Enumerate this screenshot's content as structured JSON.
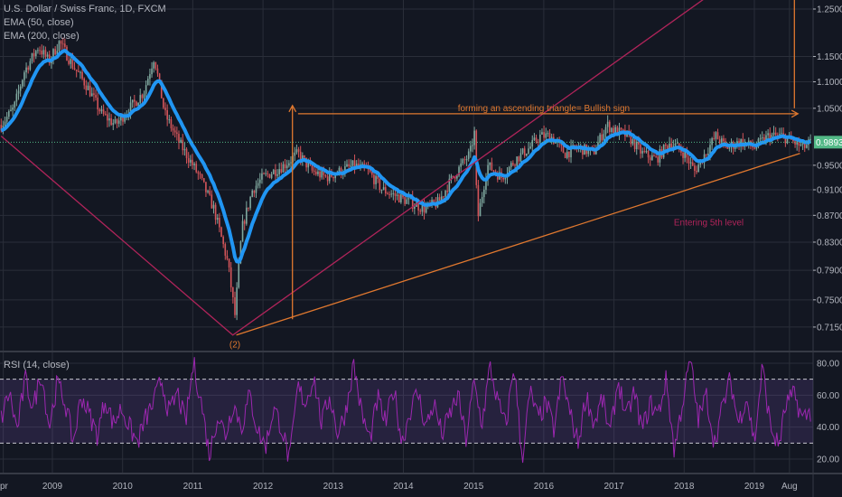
{
  "header": {
    "symbol_title": "U.S. Dollar / Swiss Franc, 1D, FXCM",
    "indicators": [
      "EMA (50, close)",
      "EMA (200, close)"
    ]
  },
  "rsi_pane": {
    "title": "RSI (14, close)"
  },
  "colors": {
    "background": "#131722",
    "grid": "#2a2e39",
    "text": "#b2b5be",
    "ema": "#2196f3",
    "candle_up": "#7fa89f",
    "candle_down": "#d4555a",
    "rsi_line": "#9c27b0",
    "rsi_band": "#7e57c2",
    "trend_orange": "#e0782f",
    "trend_magenta": "#b0245a",
    "last_price_bg": "#53b987"
  },
  "chart_data": [
    {
      "type": "candlestick",
      "title": "U.S. Dollar / Swiss Franc, 1D, FXCM",
      "scale": "log",
      "ylim": [
        0.69,
        1.27
      ],
      "y_ticks": [
        "1.25000",
        "1.15000",
        "1.10000",
        "1.05000",
        "0.95000",
        "0.91000",
        "0.87000",
        "0.83000",
        "0.79000",
        "0.75000",
        "0.71500"
      ],
      "last_price": "0.98934",
      "x_ticks": [
        "pr",
        "2009",
        "2010",
        "2011",
        "2012",
        "2013",
        "2014",
        "2015",
        "2016",
        "2017",
        "2018",
        "2019",
        "Aug"
      ],
      "grid": true,
      "price_path": {
        "dates": [
          2008.27,
          2008.45,
          2008.6,
          2008.8,
          2008.95,
          2009.1,
          2009.3,
          2009.5,
          2009.7,
          2009.9,
          2010.1,
          2010.3,
          2010.45,
          2010.6,
          2010.8,
          2010.95,
          2011.1,
          2011.3,
          2011.5,
          2011.6,
          2011.7,
          2011.85,
          2012.0,
          2012.3,
          2012.5,
          2012.7,
          2012.9,
          2013.1,
          2013.3,
          2013.5,
          2013.7,
          2013.9,
          2014.1,
          2014.3,
          2014.5,
          2014.7,
          2014.95,
          2015.02,
          2015.05,
          2015.2,
          2015.4,
          2015.6,
          2015.8,
          2015.95,
          2016.1,
          2016.3,
          2016.5,
          2016.7,
          2016.9,
          2017.0,
          2017.2,
          2017.4,
          2017.6,
          2017.8,
          2018.0,
          2018.15,
          2018.3,
          2018.45,
          2018.6,
          2018.8,
          2019.0,
          2019.2,
          2019.4,
          2019.55,
          2019.7,
          2019.8
        ],
        "close": [
          1.02,
          1.05,
          1.12,
          1.17,
          1.14,
          1.18,
          1.13,
          1.09,
          1.04,
          1.02,
          1.05,
          1.08,
          1.15,
          1.04,
          0.99,
          0.96,
          0.93,
          0.88,
          0.8,
          0.73,
          0.85,
          0.91,
          0.93,
          0.95,
          0.97,
          0.94,
          0.93,
          0.94,
          0.95,
          0.94,
          0.91,
          0.9,
          0.89,
          0.88,
          0.89,
          0.93,
          0.97,
          1.01,
          0.86,
          0.95,
          0.93,
          0.96,
          0.98,
          1.0,
          1.0,
          0.97,
          0.98,
          0.97,
          1.02,
          1.01,
          1.0,
          0.97,
          0.96,
          0.99,
          0.97,
          0.94,
          0.97,
          1.0,
          0.98,
          0.99,
          0.98,
          1.0,
          1.0,
          0.99,
          0.98,
          0.989
        ]
      },
      "series": [
        {
          "name": "EMA (50, close)"
        }
      ],
      "drawings": [
        {
          "kind": "line",
          "color": "magenta",
          "points": [
            [
              2008.27,
              1.0
            ],
            [
              2011.57,
              0.705
            ],
            [
              2018.35,
              1.28
            ]
          ]
        },
        {
          "kind": "line",
          "color": "orange",
          "points": [
            [
              2011.62,
              0.705
            ],
            [
              2019.65,
              0.97
            ]
          ]
        },
        {
          "kind": "arrow",
          "color": "orange",
          "points": [
            [
              2012.42,
              0.725
            ],
            [
              2012.42,
              1.055
            ]
          ]
        },
        {
          "kind": "arrow",
          "color": "orange",
          "points": [
            [
              2012.5,
              1.04
            ],
            [
              2019.62,
              1.04
            ]
          ]
        },
        {
          "kind": "line",
          "color": "orange",
          "points": [
            [
              2019.57,
              1.28
            ],
            [
              2019.57,
              1.05
            ]
          ]
        }
      ],
      "annotations": [
        {
          "text": "forming an ascending triangle= Bullish sign",
          "date": 2016.0,
          "price": 1.045,
          "color": "orange"
        },
        {
          "text": "Entering 5th level",
          "date": 2018.35,
          "price": 0.855,
          "color": "magenta"
        },
        {
          "text": "(2)",
          "date": 2011.6,
          "price": 0.69,
          "color": "orange"
        }
      ]
    },
    {
      "type": "line",
      "title": "RSI (14, close)",
      "ylim": [
        10,
        85
      ],
      "y_ticks": [
        "80.00",
        "60.00",
        "40.00",
        "20.00"
      ],
      "band": [
        30,
        70
      ],
      "values": [
        45,
        62,
        38,
        70,
        52,
        75,
        40,
        68,
        55,
        30,
        60,
        48,
        35,
        58,
        42,
        52,
        40,
        30,
        45,
        55,
        70,
        48,
        62,
        42,
        80,
        55,
        22,
        48,
        35,
        55,
        40,
        60,
        38,
        28,
        52,
        40,
        18,
        65,
        55,
        72,
        42,
        60,
        36,
        50,
        80,
        48,
        32,
        58,
        42,
        65,
        30,
        50,
        62,
        40,
        55,
        35,
        48,
        60,
        32,
        68,
        42,
        78,
        55,
        40,
        80,
        20,
        62,
        45,
        55,
        38,
        72,
        48,
        30,
        60,
        42,
        58,
        35,
        70,
        45,
        62,
        38,
        55,
        48,
        70,
        25,
        55,
        82,
        45,
        60,
        30,
        52,
        70,
        42,
        60,
        30,
        78,
        40,
        28,
        55,
        60,
        45,
        50
      ],
      "dates_range": [
        2008.27,
        2019.8
      ]
    }
  ]
}
